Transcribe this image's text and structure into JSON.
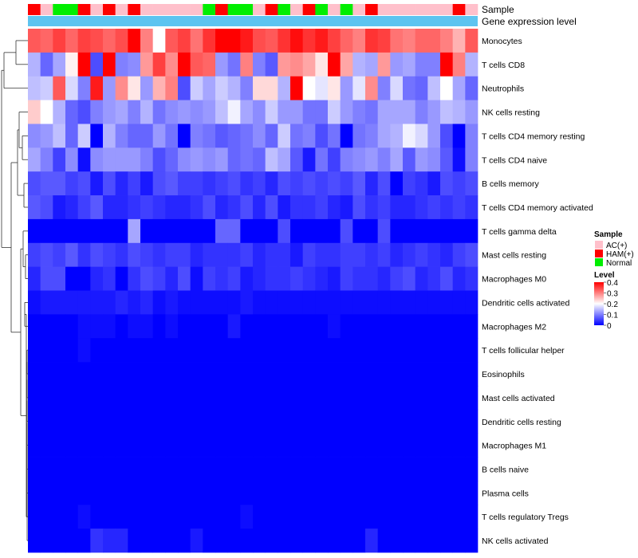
{
  "chart_data": {
    "type": "heatmap",
    "title": "",
    "annotation_rows": {
      "sample_label": "Sample",
      "expression_label": "Gene expression level"
    },
    "sample_groups": [
      "HAM(+)",
      "AC(+)",
      "Normal",
      "Normal",
      "HAM(+)",
      "AC(+)",
      "HAM(+)",
      "AC(+)",
      "HAM(+)",
      "AC(+)",
      "AC(+)",
      "AC(+)",
      "AC(+)",
      "AC(+)",
      "Normal",
      "HAM(+)",
      "Normal",
      "Normal",
      "AC(+)",
      "HAM(+)",
      "Normal",
      "AC(+)",
      "HAM(+)",
      "Normal",
      "AC(+)",
      "Normal",
      "AC(+)",
      "HAM(+)",
      "AC(+)",
      "AC(+)",
      "AC(+)",
      "AC(+)",
      "AC(+)",
      "AC(+)",
      "HAM(+)",
      "AC(+)"
    ],
    "group_colors": {
      "AC(+)": "#ffc0cb",
      "HAM(+)": "#ff0000",
      "Normal": "#00ee00"
    },
    "expression_color": "#5ec4f0",
    "rows": [
      "Monocytes",
      "T cells CD8",
      "Neutrophils",
      "NK cells resting",
      "T cells CD4 memory resting",
      "T cells CD4 naive",
      "B cells memory",
      "T cells CD4 memory activated",
      "T cells gamma delta",
      "Mast cells resting",
      "Macrophages M0",
      "Dendritic cells activated",
      "Macrophages M2",
      "T cells follicular helper",
      "Eosinophils",
      "Mast cells activated",
      "Dendritic cells resting",
      "Macrophages M1",
      "B cells naive",
      "Plasma cells",
      "T cells regulatory  Tregs",
      "NK cells activated"
    ],
    "values": [
      [
        0.33,
        0.32,
        0.35,
        0.32,
        0.35,
        0.34,
        0.32,
        0.34,
        0.4,
        0.3,
        0.2,
        0.33,
        0.35,
        0.31,
        0.36,
        0.4,
        0.4,
        0.38,
        0.34,
        0.33,
        0.36,
        0.39,
        0.36,
        0.38,
        0.35,
        0.32,
        0.3,
        0.36,
        0.35,
        0.31,
        0.3,
        0.32,
        0.32,
        0.3,
        0.26,
        0.33
      ],
      [
        0.14,
        0.08,
        0.13,
        0.21,
        0.4,
        0.06,
        0.4,
        0.1,
        0.11,
        0.28,
        0.35,
        0.29,
        0.4,
        0.33,
        0.32,
        0.12,
        0.09,
        0.3,
        0.1,
        0.07,
        0.28,
        0.29,
        0.27,
        0.22,
        0.4,
        0.27,
        0.14,
        0.13,
        0.28,
        0.12,
        0.13,
        0.1,
        0.1,
        0.4,
        0.3,
        0.14
      ],
      [
        0.15,
        0.16,
        0.33,
        0.17,
        0.1,
        0.38,
        0.12,
        0.29,
        0.22,
        0.12,
        0.26,
        0.3,
        0.06,
        0.16,
        0.13,
        0.16,
        0.14,
        0.1,
        0.23,
        0.23,
        0.14,
        0.4,
        0.2,
        0.18,
        0.22,
        0.12,
        0.18,
        0.29,
        0.1,
        0.17,
        0.09,
        0.08,
        0.15,
        0.2,
        0.13,
        0.08
      ],
      [
        0.24,
        0.2,
        0.14,
        0.08,
        0.06,
        0.1,
        0.12,
        0.13,
        0.1,
        0.14,
        0.09,
        0.11,
        0.12,
        0.11,
        0.12,
        0.15,
        0.19,
        0.13,
        0.11,
        0.16,
        0.12,
        0.12,
        0.09,
        0.09,
        0.16,
        0.12,
        0.1,
        0.09,
        0.13,
        0.13,
        0.13,
        0.1,
        0.12,
        0.15,
        0.14,
        0.12
      ],
      [
        0.11,
        0.12,
        0.15,
        0.08,
        0.16,
        0.0,
        0.14,
        0.1,
        0.08,
        0.08,
        0.12,
        0.09,
        0.0,
        0.1,
        0.09,
        0.07,
        0.08,
        0.09,
        0.11,
        0.08,
        0.16,
        0.09,
        0.1,
        0.06,
        0.09,
        0.0,
        0.09,
        0.1,
        0.13,
        0.14,
        0.19,
        0.17,
        0.12,
        0.06,
        0.0,
        0.1
      ],
      [
        0.13,
        0.1,
        0.05,
        0.11,
        0.01,
        0.11,
        0.12,
        0.12,
        0.12,
        0.1,
        0.06,
        0.08,
        0.11,
        0.12,
        0.11,
        0.12,
        0.08,
        0.09,
        0.08,
        0.15,
        0.13,
        0.07,
        0.02,
        0.09,
        0.05,
        0.1,
        0.11,
        0.12,
        0.1,
        0.13,
        0.07,
        0.12,
        0.11,
        0.07,
        0.01,
        0.1
      ],
      [
        0.06,
        0.07,
        0.07,
        0.05,
        0.06,
        0.02,
        0.06,
        0.03,
        0.05,
        0.02,
        0.06,
        0.07,
        0.05,
        0.05,
        0.04,
        0.05,
        0.06,
        0.04,
        0.05,
        0.03,
        0.06,
        0.05,
        0.06,
        0.05,
        0.06,
        0.05,
        0.07,
        0.03,
        0.06,
        0.0,
        0.05,
        0.04,
        0.02,
        0.06,
        0.05,
        0.06
      ],
      [
        0.07,
        0.06,
        0.02,
        0.03,
        0.05,
        0.07,
        0.03,
        0.03,
        0.04,
        0.05,
        0.04,
        0.03,
        0.03,
        0.04,
        0.06,
        0.03,
        0.04,
        0.06,
        0.03,
        0.06,
        0.02,
        0.04,
        0.04,
        0.05,
        0.03,
        0.02,
        0.06,
        0.04,
        0.05,
        0.03,
        0.03,
        0.04,
        0.05,
        0.04,
        0.05,
        0.04
      ],
      [
        0.0,
        0.0,
        0.0,
        0.0,
        0.0,
        0.0,
        0.0,
        0.0,
        0.13,
        0.0,
        0.0,
        0.0,
        0.0,
        0.0,
        0.0,
        0.08,
        0.08,
        0.0,
        0.0,
        0.0,
        0.06,
        0.0,
        0.0,
        0.0,
        0.0,
        0.06,
        0.0,
        0.0,
        0.06,
        0.0,
        0.0,
        0.0,
        0.0,
        0.0,
        0.0,
        0.0
      ],
      [
        0.05,
        0.06,
        0.05,
        0.07,
        0.04,
        0.06,
        0.05,
        0.04,
        0.06,
        0.05,
        0.04,
        0.05,
        0.05,
        0.03,
        0.04,
        0.04,
        0.04,
        0.05,
        0.03,
        0.04,
        0.04,
        0.02,
        0.05,
        0.04,
        0.04,
        0.05,
        0.05,
        0.04,
        0.05,
        0.03,
        0.04,
        0.05,
        0.04,
        0.03,
        0.05,
        0.06
      ],
      [
        0.03,
        0.06,
        0.06,
        0.0,
        0.0,
        0.03,
        0.04,
        0.0,
        0.04,
        0.06,
        0.05,
        0.03,
        0.06,
        0.01,
        0.05,
        0.04,
        0.05,
        0.02,
        0.03,
        0.04,
        0.04,
        0.05,
        0.04,
        0.03,
        0.02,
        0.05,
        0.04,
        0.04,
        0.03,
        0.05,
        0.06,
        0.03,
        0.04,
        0.06,
        0.03,
        0.04
      ],
      [
        0.01,
        0.02,
        0.02,
        0.02,
        0.02,
        0.02,
        0.02,
        0.03,
        0.02,
        0.03,
        0.01,
        0.02,
        0.01,
        0.01,
        0.01,
        0.01,
        0.01,
        0.02,
        0.01,
        0.01,
        0.01,
        0.01,
        0.01,
        0.01,
        0.01,
        0.01,
        0.01,
        0.01,
        0.01,
        0.01,
        0.01,
        0.01,
        0.01,
        0.01,
        0.01,
        0.01
      ],
      [
        0.0,
        0.0,
        0.0,
        0.0,
        0.01,
        0.01,
        0.01,
        0.0,
        0.01,
        0.01,
        0.0,
        0.01,
        0.0,
        0.0,
        0.0,
        0.0,
        0.02,
        0.0,
        0.0,
        0.0,
        0.0,
        0.0,
        0.0,
        0.0,
        0.01,
        0.0,
        0.0,
        0.0,
        0.0,
        0.0,
        0.0,
        0.0,
        0.0,
        0.0,
        0.0,
        0.0
      ],
      [
        0.0,
        0.0,
        0.0,
        0.0,
        0.01,
        0.0,
        0.0,
        0.0,
        0.0,
        0.0,
        0.0,
        0.0,
        0.0,
        0.0,
        0.0,
        0.0,
        0.0,
        0.0,
        0.0,
        0.0,
        0.0,
        0.0,
        0.0,
        0.0,
        0.0,
        0.0,
        0.0,
        0.0,
        0.0,
        0.0,
        0.0,
        0.0,
        0.0,
        0.0,
        0.0,
        0.0
      ],
      [
        0,
        0,
        0,
        0,
        0,
        0,
        0,
        0,
        0,
        0,
        0,
        0,
        0,
        0,
        0,
        0,
        0,
        0,
        0,
        0,
        0,
        0,
        0,
        0,
        0,
        0,
        0,
        0,
        0,
        0,
        0,
        0,
        0,
        0,
        0,
        0
      ],
      [
        0,
        0,
        0,
        0,
        0,
        0,
        0,
        0,
        0,
        0,
        0,
        0,
        0,
        0,
        0,
        0,
        0,
        0,
        0,
        0,
        0,
        0,
        0,
        0,
        0,
        0,
        0,
        0,
        0,
        0,
        0,
        0,
        0,
        0,
        0,
        0
      ],
      [
        0,
        0,
        0,
        0,
        0,
        0,
        0,
        0,
        0,
        0,
        0,
        0,
        0,
        0,
        0,
        0,
        0,
        0,
        0,
        0,
        0,
        0,
        0,
        0,
        0,
        0,
        0,
        0,
        0,
        0,
        0,
        0,
        0,
        0,
        0,
        0
      ],
      [
        0,
        0,
        0,
        0,
        0,
        0,
        0,
        0,
        0,
        0,
        0,
        0,
        0,
        0,
        0,
        0,
        0,
        0,
        0,
        0,
        0,
        0,
        0,
        0,
        0,
        0,
        0,
        0,
        0,
        0,
        0,
        0,
        0,
        0,
        0,
        0
      ],
      [
        0,
        0,
        0,
        0,
        0,
        0,
        0,
        0,
        0,
        0,
        0,
        0,
        0,
        0,
        0,
        0,
        0,
        0,
        0,
        0,
        0,
        0,
        0,
        0,
        0,
        0,
        0,
        0,
        0,
        0,
        0,
        0,
        0,
        0,
        0,
        0
      ],
      [
        0,
        0,
        0,
        0,
        0,
        0,
        0,
        0,
        0,
        0,
        0,
        0,
        0,
        0,
        0,
        0,
        0,
        0,
        0,
        0,
        0,
        0,
        0,
        0,
        0,
        0,
        0,
        0,
        0,
        0,
        0,
        0,
        0,
        0,
        0,
        0
      ],
      [
        0.0,
        0.0,
        0.0,
        0.0,
        0.01,
        0.0,
        0.0,
        0.0,
        0.0,
        0.0,
        0.0,
        0.0,
        0.0,
        0.0,
        0.0,
        0.0,
        0.0,
        0.01,
        0.0,
        0.0,
        0.0,
        0.0,
        0.0,
        0.0,
        0.0,
        0.0,
        0.0,
        0.0,
        0.0,
        0.0,
        0.0,
        0.0,
        0.0,
        0.0,
        0.0,
        0.0
      ],
      [
        0.0,
        0.0,
        0.0,
        0.0,
        0.0,
        0.04,
        0.03,
        0.03,
        0.0,
        0.0,
        0.0,
        0.0,
        0.0,
        0.02,
        0.0,
        0.0,
        0.0,
        0.0,
        0.0,
        0.0,
        0.0,
        0.0,
        0.0,
        0.0,
        0.0,
        0.0,
        0.0,
        0.03,
        0.0,
        0.0,
        0.0,
        0.0,
        0.0,
        0.0,
        0.0,
        0.0
      ]
    ],
    "color_scale": {
      "min": 0,
      "max": 0.4,
      "colors": [
        "#0000ff",
        "#ffffff",
        "#ff0000"
      ]
    },
    "legend": {
      "sample_title": "Sample",
      "sample_items": [
        "AC(+)",
        "HAM(+)",
        "Normal"
      ],
      "level_title": "Level",
      "level_ticks": [
        "0.4",
        "0.3",
        "0.2",
        "0.1",
        "0"
      ]
    },
    "dendrogram": "rows"
  }
}
